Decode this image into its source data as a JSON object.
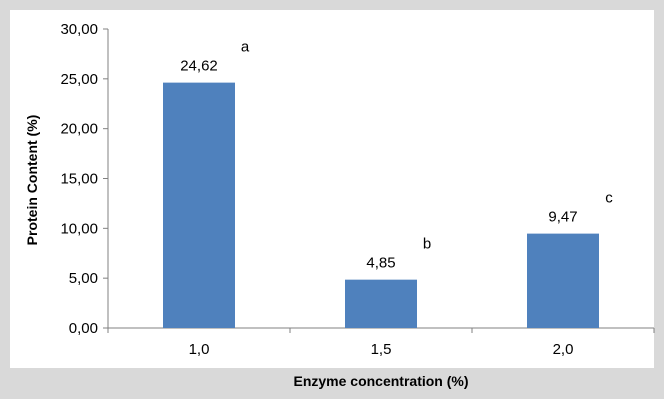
{
  "chart_data": {
    "type": "bar",
    "categories": [
      "1,0",
      "1,5",
      "2,0"
    ],
    "values": [
      24.62,
      4.85,
      9.47
    ],
    "data_labels": [
      "24,62",
      "4,85",
      "9,47"
    ],
    "significance_letters": [
      "a",
      "b",
      "c"
    ],
    "y_ticks": [
      "0,00",
      "5,00",
      "10,00",
      "15,00",
      "20,00",
      "25,00",
      "30,00"
    ],
    "xlabel": "Enzyme concentration (%)",
    "ylabel": "Protein Content (%)",
    "ylim": [
      0,
      30
    ],
    "y_tick_step": 5,
    "grid": false,
    "legend": "none",
    "colors": {
      "bar": "#4f81bd",
      "plot_background": "#ffffff",
      "figure_background": "#d9d9d9",
      "axis": "#808080"
    }
  }
}
